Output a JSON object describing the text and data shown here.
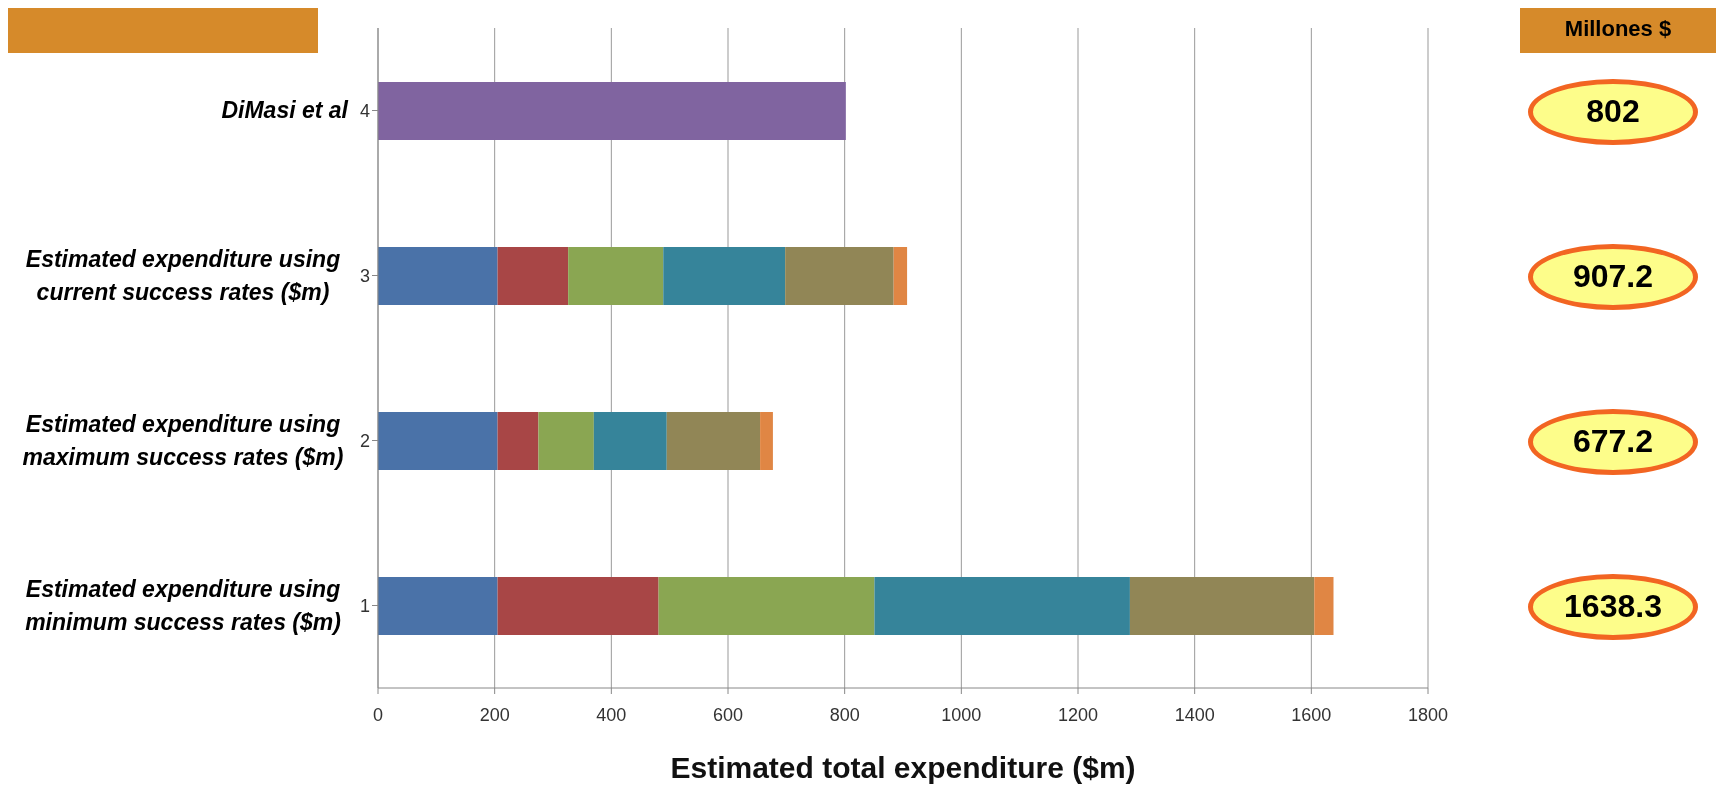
{
  "chart_data": {
    "type": "bar",
    "orientation": "horizontal",
    "stacked": true,
    "xlabel": "Estimated total expenditure ($m)",
    "categories": [
      "4",
      "3",
      "2",
      "1"
    ],
    "series": [
      {
        "color": "#4a72a8",
        "values": [
          null,
          205,
          205,
          205
        ]
      },
      {
        "color": "#a84646",
        "values": [
          null,
          121,
          70,
          276
        ]
      },
      {
        "color": "#8aa652",
        "values": [
          null,
          163,
          95,
          370
        ]
      },
      {
        "color": "#36849a",
        "values": [
          null,
          209,
          125,
          438
        ]
      },
      {
        "color": "#918656",
        "values": [
          null,
          186,
          160,
          316
        ]
      },
      {
        "color": "#e08644",
        "values": [
          null,
          23,
          22,
          33
        ]
      },
      {
        "color": "#8064a0",
        "values": [
          802,
          null,
          null,
          null
        ]
      }
    ],
    "xlim": [
      0,
      1800
    ],
    "xticks": [
      0,
      200,
      400,
      600,
      800,
      1000,
      1200,
      1400,
      1600,
      1800
    ],
    "grid": "x",
    "annotations": [
      "DiMasi et al",
      "Estimated expenditure using current success rates ($m)",
      "Estimated expenditure using maximum success rates ($m)",
      "Estimated expenditure using minimum success rates ($m)",
      "Millones $",
      "802",
      "907.2",
      "677.2",
      "1638.3"
    ]
  }
}
